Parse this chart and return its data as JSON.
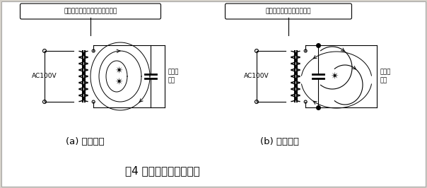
{
  "bg_color": "#d4d0c8",
  "fig_bg": "#ffffff",
  "title": "图4 滤波电容的布线方法",
  "subtitle_a": "(a) 坏的例子",
  "subtitle_b": "(b) 好的例子",
  "label_a": "电流的流动路径不通过滤波电容",
  "label_b": "电流流动路径通过滤波电容",
  "label_ac": "AC100V",
  "label_load": "接负载\n电路",
  "fig_width": 6.04,
  "fig_height": 2.66,
  "dpi": 100
}
